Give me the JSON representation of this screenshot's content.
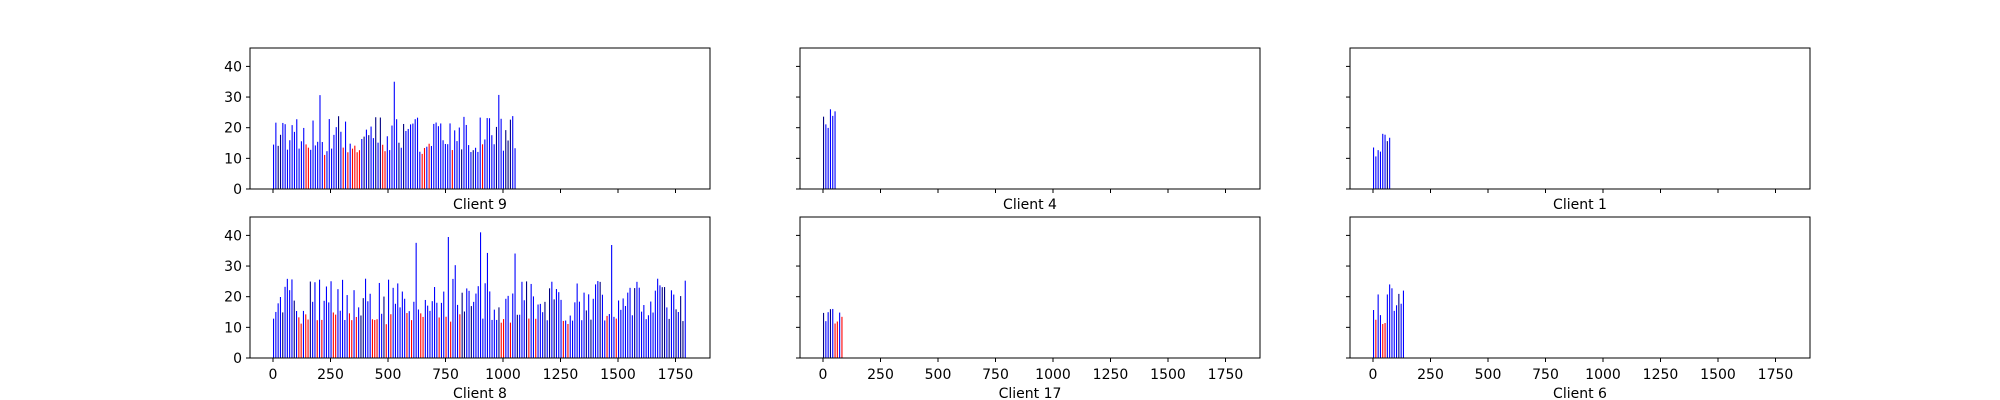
{
  "chart_data": [
    {
      "type": "bar",
      "title": "Client 9",
      "xlim": [
        -100,
        1900
      ],
      "ylim": [
        0,
        46
      ],
      "xticks": [
        0,
        250,
        500,
        750,
        1000,
        1250,
        1500,
        1750
      ],
      "yticks": [
        0,
        10,
        20,
        30,
        40
      ],
      "show_xtick_labels": false,
      "show_ytick_labels": true,
      "x_range": [
        0,
        1050
      ],
      "bar_count": 105,
      "approx_heights": {
        "blue_typical": [
          12,
          24
        ],
        "blue_peak": 35,
        "red_typical": [
          11,
          15
        ]
      }
    },
    {
      "type": "bar",
      "title": "Client 4",
      "xlim": [
        -100,
        1900
      ],
      "ylim": [
        0,
        46
      ],
      "xticks": [
        0,
        250,
        500,
        750,
        1000,
        1250,
        1500,
        1750
      ],
      "yticks": [
        0,
        10,
        20,
        30,
        40
      ],
      "show_xtick_labels": false,
      "show_ytick_labels": false,
      "x_range": [
        0,
        50
      ],
      "bar_count": 6,
      "approx_heights": {
        "blue_typical": [
          17,
          25
        ],
        "blue_peak": 26,
        "red_typical": [
          0,
          0
        ]
      }
    },
    {
      "type": "bar",
      "title": "Client 1",
      "xlim": [
        -100,
        1900
      ],
      "ylim": [
        0,
        46
      ],
      "xticks": [
        0,
        250,
        500,
        750,
        1000,
        1250,
        1500,
        1750
      ],
      "yticks": [
        0,
        10,
        20,
        30,
        40
      ],
      "show_xtick_labels": false,
      "show_ytick_labels": false,
      "x_range": [
        0,
        70
      ],
      "bar_count": 8,
      "approx_heights": {
        "blue_typical": [
          10,
          18
        ],
        "blue_peak": 18,
        "red_typical": [
          11,
          14
        ]
      }
    },
    {
      "type": "bar",
      "title": "Client 8",
      "xlim": [
        -100,
        1900
      ],
      "ylim": [
        0,
        46
      ],
      "xticks": [
        0,
        250,
        500,
        750,
        1000,
        1250,
        1500,
        1750
      ],
      "yticks": [
        0,
        10,
        20,
        30,
        40
      ],
      "show_xtick_labels": true,
      "show_ytick_labels": true,
      "x_range": [
        0,
        1790
      ],
      "bar_count": 180,
      "approx_heights": {
        "blue_typical": [
          12,
          26
        ],
        "blue_peak": 41,
        "red_typical": [
          11,
          15
        ]
      }
    },
    {
      "type": "bar",
      "title": "Client 17",
      "xlim": [
        -100,
        1900
      ],
      "ylim": [
        0,
        46
      ],
      "xticks": [
        0,
        250,
        500,
        750,
        1000,
        1250,
        1500,
        1750
      ],
      "yticks": [
        0,
        10,
        20,
        30,
        40
      ],
      "show_xtick_labels": true,
      "show_ytick_labels": false,
      "x_range": [
        0,
        80
      ],
      "bar_count": 9,
      "approx_heights": {
        "blue_typical": [
          12,
          16
        ],
        "blue_peak": 16,
        "red_typical": [
          11,
          15
        ]
      }
    },
    {
      "type": "bar",
      "title": "Client 6",
      "xlim": [
        -100,
        1900
      ],
      "ylim": [
        0,
        46
      ],
      "xticks": [
        0,
        250,
        500,
        750,
        1000,
        1250,
        1500,
        1750
      ],
      "yticks": [
        0,
        10,
        20,
        30,
        40
      ],
      "show_xtick_labels": true,
      "show_ytick_labels": false,
      "x_range": [
        0,
        130
      ],
      "bar_count": 14,
      "approx_heights": {
        "blue_typical": [
          13,
          22
        ],
        "blue_peak": 24,
        "red_typical": [
          11,
          14
        ]
      }
    }
  ]
}
